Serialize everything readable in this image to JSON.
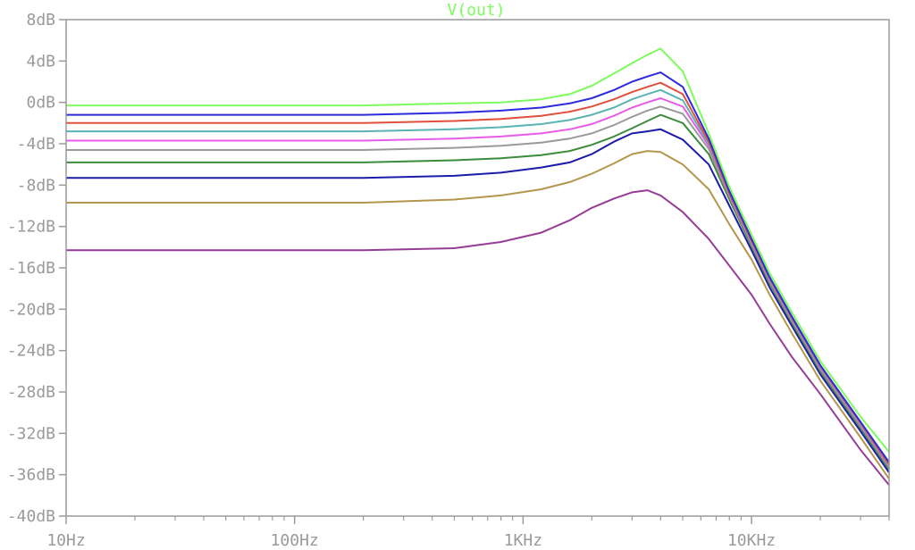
{
  "chart_data": {
    "type": "line",
    "title": "V(out)",
    "title_color": "#7cfc5c",
    "x_scale": "log",
    "xlim": [
      10,
      40000
    ],
    "ylim": [
      -40,
      8
    ],
    "x_ticks": [
      {
        "value": 10,
        "label": "10Hz"
      },
      {
        "value": 100,
        "label": "100Hz"
      },
      {
        "value": 1000,
        "label": "1KHz"
      },
      {
        "value": 10000,
        "label": "10KHz"
      }
    ],
    "y_ticks": [
      {
        "value": 8,
        "label": "8dB"
      },
      {
        "value": 4,
        "label": "4dB"
      },
      {
        "value": 0,
        "label": "0dB"
      },
      {
        "value": -4,
        "label": "-4dB"
      },
      {
        "value": -8,
        "label": "-8dB"
      },
      {
        "value": -12,
        "label": "-12dB"
      },
      {
        "value": -16,
        "label": "-16dB"
      },
      {
        "value": -20,
        "label": "-20dB"
      },
      {
        "value": -24,
        "label": "-24dB"
      },
      {
        "value": -28,
        "label": "-28dB"
      },
      {
        "value": -32,
        "label": "-32dB"
      },
      {
        "value": -36,
        "label": "-36dB"
      },
      {
        "value": -40,
        "label": "-40dB"
      }
    ],
    "grid": false,
    "series": [
      {
        "color": "#7cfc5c",
        "x": [
          10,
          200,
          500,
          800,
          1200,
          1600,
          2000,
          2500,
          3000,
          3500,
          4000,
          5000,
          6500,
          8000,
          10000,
          12000,
          15000,
          20000,
          30000,
          40000
        ],
        "y": [
          -0.3,
          -0.3,
          -0.1,
          0.0,
          0.3,
          0.8,
          1.6,
          2.8,
          3.8,
          4.6,
          5.2,
          3.0,
          -3.0,
          -8.2,
          -12.8,
          -16.5,
          -20.3,
          -25.0,
          -30.4,
          -33.8
        ]
      },
      {
        "color": "#2b2bdc",
        "x": [
          10,
          200,
          500,
          800,
          1200,
          1600,
          2000,
          2500,
          3000,
          3500,
          4000,
          5000,
          6500,
          8000,
          10000,
          12000,
          15000,
          20000,
          30000,
          40000
        ],
        "y": [
          -1.2,
          -1.2,
          -1.0,
          -0.8,
          -0.5,
          -0.1,
          0.4,
          1.2,
          2.0,
          2.5,
          2.9,
          1.5,
          -3.5,
          -8.6,
          -13.2,
          -16.9,
          -20.7,
          -25.4,
          -30.9,
          -34.8
        ]
      },
      {
        "color": "#e0503c",
        "x": [
          10,
          200,
          500,
          800,
          1200,
          1600,
          2000,
          2500,
          3000,
          3500,
          4000,
          5000,
          6500,
          8000,
          10000,
          12000,
          15000,
          20000,
          30000,
          40000
        ],
        "y": [
          -2.0,
          -2.0,
          -1.8,
          -1.6,
          -1.3,
          -0.9,
          -0.4,
          0.3,
          1.0,
          1.5,
          1.9,
          0.8,
          -3.8,
          -8.8,
          -13.4,
          -17.0,
          -20.8,
          -25.5,
          -31.0,
          -35.0
        ]
      },
      {
        "color": "#5ab4b4",
        "x": [
          10,
          200,
          500,
          800,
          1200,
          1600,
          2000,
          2500,
          3000,
          3500,
          4000,
          5000,
          6500,
          8000,
          10000,
          12000,
          15000,
          20000,
          30000,
          40000
        ],
        "y": [
          -2.8,
          -2.8,
          -2.6,
          -2.4,
          -2.1,
          -1.7,
          -1.2,
          -0.5,
          0.3,
          0.8,
          1.2,
          0.2,
          -4.0,
          -8.9,
          -13.5,
          -17.1,
          -20.9,
          -25.6,
          -31.1,
          -35.1
        ]
      },
      {
        "color": "#e85be8",
        "x": [
          10,
          200,
          500,
          800,
          1200,
          1600,
          2000,
          2500,
          3000,
          3500,
          4000,
          5000,
          6500,
          8000,
          10000,
          12000,
          15000,
          20000,
          30000,
          40000
        ],
        "y": [
          -3.7,
          -3.7,
          -3.5,
          -3.3,
          -3.0,
          -2.6,
          -2.1,
          -1.3,
          -0.5,
          0.0,
          0.4,
          -0.4,
          -4.2,
          -9.0,
          -13.6,
          -17.2,
          -21.0,
          -25.7,
          -31.2,
          -35.2
        ]
      },
      {
        "color": "#9a9a9a",
        "x": [
          10,
          200,
          500,
          800,
          1200,
          1600,
          2000,
          2500,
          3000,
          3500,
          4000,
          5000,
          6500,
          8000,
          10000,
          12000,
          15000,
          20000,
          30000,
          40000
        ],
        "y": [
          -4.6,
          -4.6,
          -4.4,
          -4.2,
          -3.9,
          -3.5,
          -3.0,
          -2.2,
          -1.4,
          -0.8,
          -0.4,
          -1.1,
          -4.5,
          -9.1,
          -13.7,
          -17.3,
          -21.1,
          -25.8,
          -31.3,
          -35.3
        ]
      },
      {
        "color": "#3c8c3c",
        "x": [
          10,
          200,
          500,
          800,
          1200,
          1600,
          2000,
          2500,
          3000,
          3500,
          4000,
          5000,
          6500,
          8000,
          10000,
          12000,
          15000,
          20000,
          30000,
          40000
        ],
        "y": [
          -5.8,
          -5.8,
          -5.6,
          -5.4,
          -5.1,
          -4.7,
          -4.1,
          -3.3,
          -2.5,
          -1.8,
          -1.2,
          -2.0,
          -5.0,
          -9.4,
          -13.9,
          -17.5,
          -21.3,
          -26.0,
          -31.5,
          -35.5
        ]
      },
      {
        "color": "#1c1caa",
        "x": [
          10,
          200,
          500,
          800,
          1200,
          1600,
          2000,
          2500,
          3000,
          3500,
          4000,
          5000,
          6500,
          8000,
          10000,
          12000,
          15000,
          20000,
          30000,
          40000
        ],
        "y": [
          -7.3,
          -7.3,
          -7.1,
          -6.8,
          -6.3,
          -5.8,
          -5.0,
          -3.8,
          -3.0,
          -2.8,
          -2.6,
          -3.6,
          -6.0,
          -10.0,
          -14.3,
          -17.9,
          -21.6,
          -26.3,
          -31.8,
          -35.8
        ]
      },
      {
        "color": "#b4964c",
        "x": [
          10,
          200,
          500,
          800,
          1200,
          1600,
          2000,
          2500,
          3000,
          3500,
          4000,
          5000,
          6500,
          8000,
          10000,
          12000,
          15000,
          20000,
          30000,
          40000
        ],
        "y": [
          -9.7,
          -9.7,
          -9.4,
          -9.0,
          -8.4,
          -7.7,
          -6.9,
          -5.9,
          -5.0,
          -4.7,
          -4.8,
          -6.0,
          -8.4,
          -11.8,
          -15.2,
          -18.6,
          -22.3,
          -26.9,
          -32.4,
          -36.4
        ]
      },
      {
        "color": "#963c96",
        "x": [
          10,
          200,
          500,
          800,
          1200,
          1600,
          2000,
          2500,
          3000,
          3500,
          4000,
          5000,
          6500,
          8000,
          10000,
          12000,
          15000,
          20000,
          30000,
          40000
        ],
        "y": [
          -14.3,
          -14.3,
          -14.1,
          -13.5,
          -12.6,
          -11.4,
          -10.2,
          -9.3,
          -8.7,
          -8.5,
          -9.0,
          -10.6,
          -13.2,
          -15.8,
          -18.6,
          -21.4,
          -24.6,
          -28.2,
          -33.6,
          -37.0
        ]
      }
    ]
  }
}
